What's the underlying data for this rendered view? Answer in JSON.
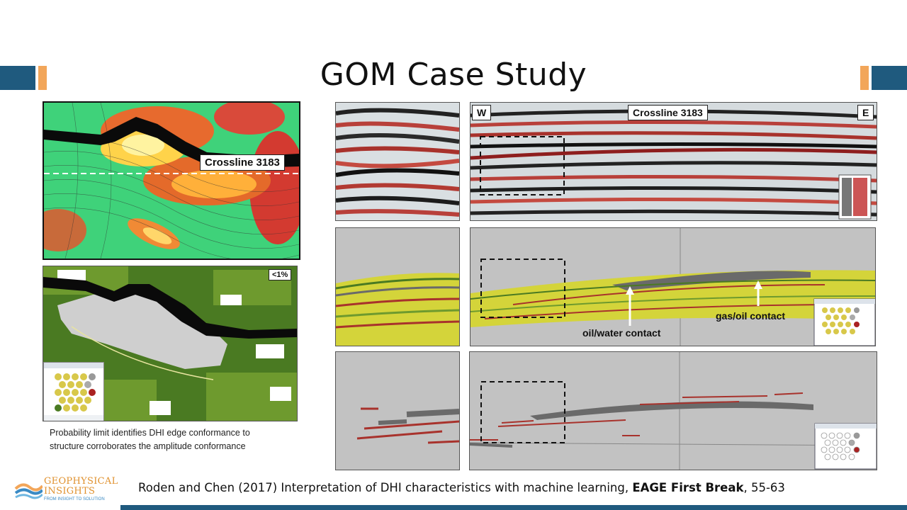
{
  "slide": {
    "title": "GOM Case Study",
    "caption_line1": "Probability limit identifies DHI edge conformance to",
    "caption_line2": "structure corroborates the amplitude conformance",
    "citation_prefix": "Roden and Chen (2017) Interpretation of DHI characteristics with machine learning, ",
    "citation_bold": "EAGE First Break",
    "citation_suffix": ", 55-63"
  },
  "map_panel": {
    "line_label": "Crossline 3183"
  },
  "prob_panel": {
    "threshold_label": "<1%"
  },
  "seismic_panel": {
    "west_label": "W",
    "east_label": "E",
    "line_label": "Crossline 3183"
  },
  "classification_panel": {
    "owc_label": "oil/water contact",
    "goc_label": "gas/oil contact"
  },
  "logo": {
    "line1": "GEOPHYSICAL",
    "line2": "INSIGHTS",
    "tagline": "FROM INSIGHT TO SOLUTION"
  },
  "colors": {
    "bar": "#1f5a7e",
    "accent": "#f2a65a",
    "logo": "#e0912e"
  }
}
